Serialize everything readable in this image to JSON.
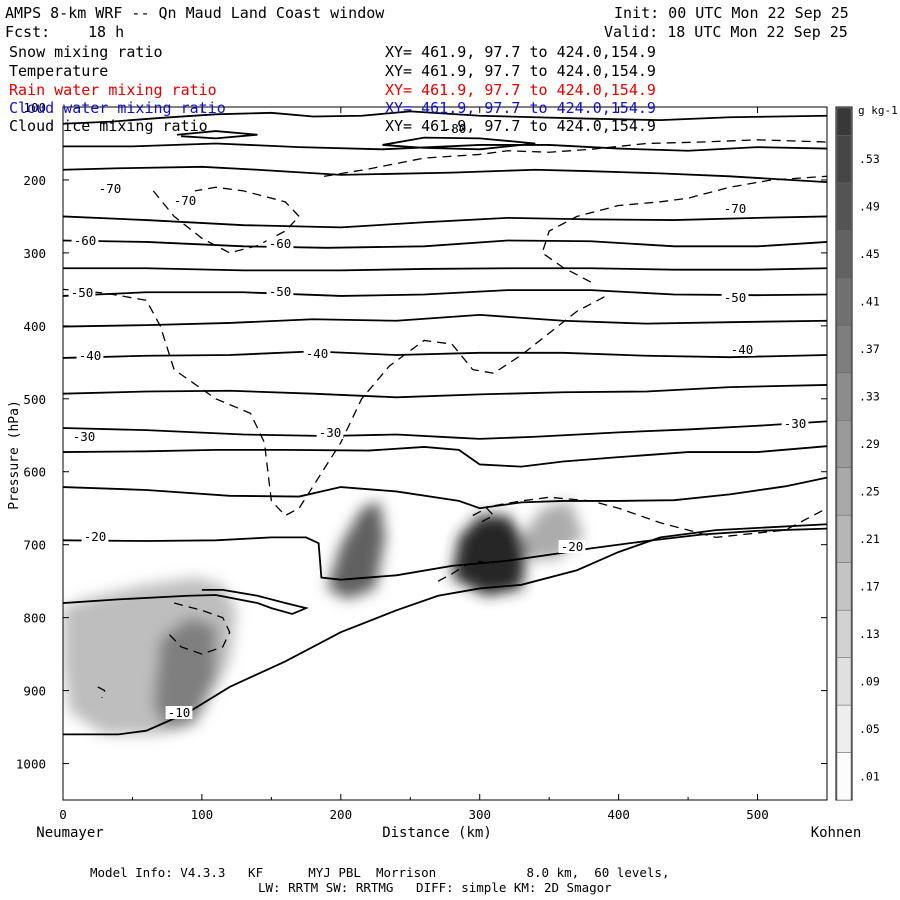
{
  "header": {
    "title": "AMPS 8-km WRF -- Qn Maud Land Coast window",
    "forecast_label": "Fcst:",
    "forecast_hours": "18 h",
    "init": "Init: 00 UTC Mon 22 Sep 25",
    "valid": "Valid: 18 UTC Mon 22 Sep 25"
  },
  "legend": [
    {
      "label": "Snow mixing ratio",
      "xy": "XY= 461.9, 97.7 to 424.0,154.9",
      "color": "#000000"
    },
    {
      "label": "Temperature",
      "xy": "XY= 461.9, 97.7 to 424.0,154.9",
      "color": "#000000"
    },
    {
      "label": "Rain water mixing ratio",
      "xy": "XY= 461.9, 97.7 to 424.0,154.9",
      "color": "#e00000"
    },
    {
      "label": "Cloud water mixing ratio",
      "xy": "XY= 461.9, 97.7 to 424.0,154.9",
      "color": "#1010c8"
    },
    {
      "label": "Cloud ice mixing ratio",
      "xy": "XY= 461.9, 97.7 to 424.0,154.9",
      "color": "#000000"
    }
  ],
  "footer": {
    "model_info": "Model Info: V4.3.3   KF      MYJ PBL  Morrison            8.0 km,  60 levels,",
    "physics": "LW: RRTM SW: RRTMG   DIFF: simple KM: 2D Smagor"
  },
  "chart_data": {
    "type": "contour",
    "xlabel": "Distance (km)",
    "ylabel": "Pressure (hPa)",
    "x_start_label": "Neumayer",
    "x_end_label": "Kohnen",
    "xlim": [
      0,
      550
    ],
    "ylim": [
      1050,
      100
    ],
    "x_ticks": [
      0,
      100,
      200,
      300,
      400,
      500
    ],
    "y_ticks": [
      100,
      200,
      300,
      400,
      500,
      600,
      700,
      800,
      900,
      1000
    ],
    "colorbar": {
      "unit": "g kg-1",
      "levels": [
        ".01",
        ".05",
        ".09",
        ".13",
        ".17",
        ".21",
        ".25",
        ".29",
        ".33",
        ".37",
        ".41",
        ".45",
        ".49",
        ".53"
      ]
    },
    "temperature_labels": [
      "-80",
      "-70",
      "-70",
      "-70",
      "-60",
      "-60",
      "-50",
      "-50",
      "-50",
      "-40",
      "-40",
      "-40",
      "-30",
      "-30",
      "-30",
      "-20",
      "-20",
      "-10"
    ],
    "snow_maxima": [
      {
        "x": 90,
        "p": 890,
        "value": 0.29
      },
      {
        "x": 215,
        "p": 710,
        "value": 0.37
      },
      {
        "x": 305,
        "p": 720,
        "value": 0.53
      },
      {
        "x": 355,
        "p": 680,
        "value": 0.17
      }
    ],
    "temperature_contours": [
      {
        "label": "-80",
        "points": [
          [
            0,
            123
          ],
          [
            35,
            120
          ],
          [
            70,
            115
          ],
          [
            110,
            110
          ],
          [
            150,
            108
          ],
          [
            180,
            113
          ],
          [
            215,
            112
          ],
          [
            250,
            106
          ],
          [
            300,
            112
          ],
          [
            340,
            114
          ],
          [
            380,
            116
          ],
          [
            430,
            118
          ],
          [
            480,
            114
          ],
          [
            550,
            112
          ]
        ]
      },
      {
        "label": "-80",
        "points": [
          [
            82,
            138
          ],
          [
            110,
            133
          ],
          [
            140,
            138
          ],
          [
            110,
            143
          ],
          [
            85,
            140
          ]
        ]
      },
      {
        "label": "-80",
        "points": [
          [
            230,
            152
          ],
          [
            260,
            142
          ],
          [
            300,
            143
          ],
          [
            340,
            150
          ],
          [
            300,
            158
          ],
          [
            260,
            156
          ],
          [
            230,
            152
          ]
        ]
      },
      {
        "label": "-70",
        "points": [
          [
            0,
            154
          ],
          [
            50,
            154
          ],
          [
            110,
            150
          ],
          [
            170,
            155
          ],
          [
            230,
            158
          ],
          [
            300,
            152
          ],
          [
            350,
            152
          ],
          [
            400,
            157
          ],
          [
            450,
            160
          ],
          [
            500,
            155
          ],
          [
            550,
            157
          ]
        ]
      },
      {
        "label": "-70",
        "points": [
          [
            0,
            186
          ],
          [
            40,
            184
          ],
          [
            100,
            182
          ],
          [
            140,
            186
          ],
          [
            200,
            193
          ],
          [
            280,
            190
          ],
          [
            340,
            186
          ],
          [
            380,
            188
          ],
          [
            430,
            191
          ],
          [
            480,
            195
          ],
          [
            550,
            203
          ]
        ]
      },
      {
        "label": "-60",
        "points": [
          [
            0,
            250
          ],
          [
            60,
            255
          ],
          [
            130,
            262
          ],
          [
            200,
            265
          ],
          [
            260,
            258
          ],
          [
            320,
            252
          ],
          [
            380,
            254
          ],
          [
            440,
            255
          ],
          [
            500,
            252
          ],
          [
            550,
            250
          ]
        ]
      },
      {
        "label": "-60",
        "points": [
          [
            0,
            283
          ],
          [
            60,
            285
          ],
          [
            130,
            291
          ],
          [
            190,
            293
          ],
          [
            260,
            291
          ],
          [
            320,
            283
          ],
          [
            380,
            284
          ],
          [
            440,
            291
          ],
          [
            500,
            291
          ],
          [
            550,
            285
          ]
        ]
      },
      {
        "label": "-50",
        "points": [
          [
            0,
            321
          ],
          [
            60,
            321
          ],
          [
            130,
            324
          ],
          [
            200,
            324
          ],
          [
            260,
            322
          ],
          [
            320,
            321
          ],
          [
            380,
            321
          ],
          [
            440,
            323
          ],
          [
            500,
            323
          ],
          [
            550,
            321
          ]
        ]
      },
      {
        "label": "-50",
        "points": [
          [
            0,
            359
          ],
          [
            60,
            354
          ],
          [
            130,
            354
          ],
          [
            200,
            359
          ],
          [
            260,
            357
          ],
          [
            320,
            351
          ],
          [
            380,
            351
          ],
          [
            440,
            357
          ],
          [
            500,
            358
          ],
          [
            550,
            357
          ]
        ]
      },
      {
        "label": "-40",
        "points": [
          [
            0,
            401
          ],
          [
            60,
            399
          ],
          [
            120,
            396
          ],
          [
            180,
            391
          ],
          [
            240,
            393
          ],
          [
            300,
            385
          ],
          [
            360,
            393
          ],
          [
            420,
            397
          ],
          [
            480,
            395
          ],
          [
            550,
            393
          ]
        ]
      },
      {
        "label": "-40",
        "points": [
          [
            0,
            444
          ],
          [
            60,
            441
          ],
          [
            120,
            440
          ],
          [
            180,
            435
          ],
          [
            240,
            440
          ],
          [
            300,
            437
          ],
          [
            360,
            437
          ],
          [
            420,
            441
          ],
          [
            480,
            443
          ],
          [
            550,
            440
          ]
        ]
      },
      {
        "label": "-40",
        "points": [
          [
            0,
            493
          ],
          [
            60,
            490
          ],
          [
            120,
            489
          ],
          [
            180,
            493
          ],
          [
            240,
            498
          ],
          [
            300,
            494
          ],
          [
            360,
            491
          ],
          [
            420,
            490
          ],
          [
            480,
            484
          ],
          [
            550,
            481
          ]
        ]
      },
      {
        "label": "-30",
        "points": [
          [
            0,
            540
          ],
          [
            60,
            543
          ],
          [
            130,
            549
          ],
          [
            190,
            551
          ],
          [
            240,
            549
          ],
          [
            280,
            553
          ],
          [
            300,
            555
          ],
          [
            340,
            552
          ],
          [
            400,
            546
          ],
          [
            450,
            542
          ],
          [
            500,
            537
          ],
          [
            550,
            531
          ]
        ]
      },
      {
        "label": "-30",
        "points": [
          [
            0,
            573
          ],
          [
            60,
            572
          ],
          [
            110,
            570
          ],
          [
            160,
            570
          ],
          [
            220,
            571
          ],
          [
            260,
            566
          ],
          [
            285,
            570
          ],
          [
            300,
            590
          ],
          [
            330,
            593
          ],
          [
            360,
            586
          ],
          [
            400,
            580
          ],
          [
            450,
            573
          ],
          [
            500,
            573
          ],
          [
            550,
            565
          ]
        ]
      },
      {
        "label": "-30",
        "points": [
          [
            0,
            621
          ],
          [
            60,
            625
          ],
          [
            120,
            633
          ],
          [
            170,
            634
          ],
          [
            200,
            621
          ],
          [
            240,
            627
          ],
          [
            285,
            640
          ],
          [
            300,
            650
          ],
          [
            330,
            642
          ],
          [
            360,
            640
          ],
          [
            400,
            640
          ],
          [
            440,
            639
          ],
          [
            480,
            631
          ],
          [
            520,
            620
          ],
          [
            550,
            608
          ]
        ]
      },
      {
        "label": "-20",
        "points": [
          [
            0,
            694
          ],
          [
            60,
            695
          ],
          [
            110,
            694
          ],
          [
            150,
            690
          ],
          [
            175,
            690
          ],
          [
            184,
            698
          ],
          [
            186,
            745
          ],
          [
            200,
            748
          ],
          [
            240,
            742
          ],
          [
            280,
            729
          ],
          [
            320,
            722
          ],
          [
            360,
            711
          ],
          [
            380,
            705
          ],
          [
            420,
            695
          ],
          [
            460,
            686
          ],
          [
            500,
            681
          ],
          [
            550,
            678
          ]
        ]
      },
      {
        "label": "-20",
        "points": [
          [
            0,
            780
          ],
          [
            40,
            775
          ],
          [
            90,
            770
          ],
          [
            110,
            769
          ],
          [
            140,
            780
          ],
          [
            150,
            787
          ],
          [
            165,
            795
          ],
          [
            175,
            787
          ],
          [
            160,
            780
          ],
          [
            140,
            770
          ],
          [
            115,
            762
          ],
          [
            100,
            762
          ]
        ]
      },
      {
        "label": "-20",
        "points": [
          [
            0,
            960
          ],
          [
            40,
            960
          ],
          [
            60,
            955
          ],
          [
            90,
            930
          ],
          [
            120,
            895
          ],
          [
            160,
            860
          ],
          [
            200,
            820
          ],
          [
            240,
            790
          ],
          [
            270,
            770
          ],
          [
            300,
            760
          ],
          [
            330,
            755
          ],
          [
            370,
            735
          ],
          [
            400,
            710
          ],
          [
            430,
            690
          ],
          [
            470,
            680
          ],
          [
            550,
            672
          ]
        ]
      }
    ]
  }
}
